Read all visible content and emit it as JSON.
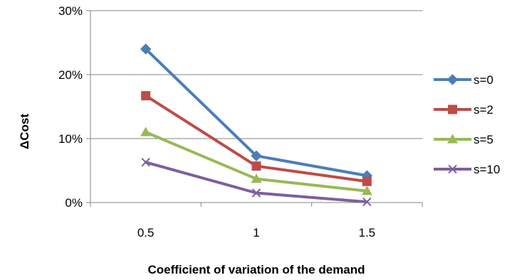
{
  "chart_data": {
    "type": "line",
    "title": "",
    "xlabel": "Coefficient of variation of the demand",
    "ylabel": "ΔCost",
    "categories": [
      "0.5",
      "1",
      "1.5"
    ],
    "ylim": [
      0,
      30
    ],
    "y_ticks": [
      0,
      10,
      20,
      30
    ],
    "y_tick_labels": [
      "0%",
      "10%",
      "20%",
      "30%"
    ],
    "grid": true,
    "legend_position": "right",
    "series": [
      {
        "name": "s=0",
        "values": [
          24.0,
          7.3,
          4.2
        ],
        "color": "#4a7ebb",
        "marker": "diamond"
      },
      {
        "name": "s=2",
        "values": [
          16.7,
          5.7,
          3.3
        ],
        "color": "#be4b48",
        "marker": "square"
      },
      {
        "name": "s=5",
        "values": [
          11.0,
          3.7,
          1.8
        ],
        "color": "#98b954",
        "marker": "triangle"
      },
      {
        "name": "s=10",
        "values": [
          6.3,
          1.5,
          0.1
        ],
        "color": "#7d5fa0",
        "marker": "x"
      }
    ]
  }
}
